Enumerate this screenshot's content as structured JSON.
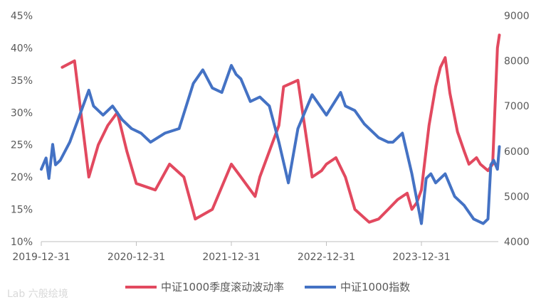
{
  "chart_data": {
    "type": "line",
    "x_tick_labels": [
      "2019-12-31",
      "2020-12-31",
      "2021-12-31",
      "2022-12-31",
      "2023-12-31"
    ],
    "y_left": {
      "ticks": [
        "10%",
        "15%",
        "20%",
        "25%",
        "30%",
        "35%",
        "40%",
        "45%"
      ],
      "ylim": [
        10,
        45
      ]
    },
    "y_right": {
      "ticks": [
        "4000",
        "5000",
        "6000",
        "7000",
        "8000",
        "9000"
      ],
      "ylim": [
        4000,
        9000
      ]
    },
    "legend_position": "bottom",
    "grid": false,
    "series": [
      {
        "name": "中证1000季度滚动波动率",
        "axis": "left",
        "color": "#e2495f",
        "x": [
          0.22,
          0.35,
          0.45,
          0.5,
          0.6,
          0.7,
          0.8,
          0.9,
          1.0,
          1.2,
          1.35,
          1.5,
          1.62,
          1.8,
          2.0,
          2.1,
          2.25,
          2.3,
          2.5,
          2.55,
          2.7,
          2.85,
          2.95,
          3.0,
          3.1,
          3.2,
          3.3,
          3.45,
          3.55,
          3.65,
          3.75,
          3.85,
          3.9,
          3.95,
          4.0,
          4.08,
          4.15,
          4.2,
          4.25,
          4.3,
          4.38,
          4.45,
          4.5,
          4.58,
          4.62,
          4.7,
          4.75,
          4.8,
          4.82
        ],
        "y": [
          37,
          38,
          26,
          20,
          25,
          28,
          30,
          24,
          19,
          18,
          22,
          20,
          13.5,
          15,
          22,
          20,
          17,
          20,
          28,
          34,
          35,
          20,
          21,
          22,
          23,
          20,
          15,
          13,
          13.5,
          15,
          16.5,
          17.5,
          15,
          16,
          18,
          28,
          34,
          37,
          38.5,
          33,
          27,
          24,
          22,
          23,
          22,
          21,
          22,
          40,
          42
        ]
      },
      {
        "name": "中证1000指数",
        "axis": "right",
        "color": "#4472c4",
        "x": [
          0.0,
          0.05,
          0.08,
          0.12,
          0.15,
          0.2,
          0.3,
          0.5,
          0.55,
          0.65,
          0.75,
          0.85,
          0.95,
          1.05,
          1.15,
          1.3,
          1.45,
          1.6,
          1.7,
          1.8,
          1.9,
          2.0,
          2.05,
          2.1,
          2.2,
          2.3,
          2.4,
          2.5,
          2.6,
          2.7,
          2.85,
          3.0,
          3.15,
          3.2,
          3.3,
          3.4,
          3.55,
          3.65,
          3.7,
          3.8,
          3.9,
          4.0,
          4.05,
          4.1,
          4.15,
          4.25,
          4.35,
          4.45,
          4.55,
          4.65,
          4.7,
          4.73,
          4.76,
          4.8,
          4.82
        ],
        "y": [
          5600,
          5850,
          5400,
          6150,
          5700,
          5800,
          6200,
          7350,
          7000,
          6800,
          7000,
          6700,
          6500,
          6400,
          6200,
          6400,
          6500,
          7500,
          7800,
          7400,
          7300,
          7900,
          7700,
          7600,
          7100,
          7200,
          7000,
          6200,
          5300,
          6500,
          7250,
          6800,
          7300,
          7000,
          6900,
          6600,
          6300,
          6200,
          6200,
          6400,
          5500,
          4400,
          5400,
          5500,
          5300,
          5500,
          5000,
          4800,
          4500,
          4400,
          4500,
          5700,
          5800,
          5600,
          6100
        ]
      }
    ]
  },
  "watermark": "Lab 六般绘境"
}
